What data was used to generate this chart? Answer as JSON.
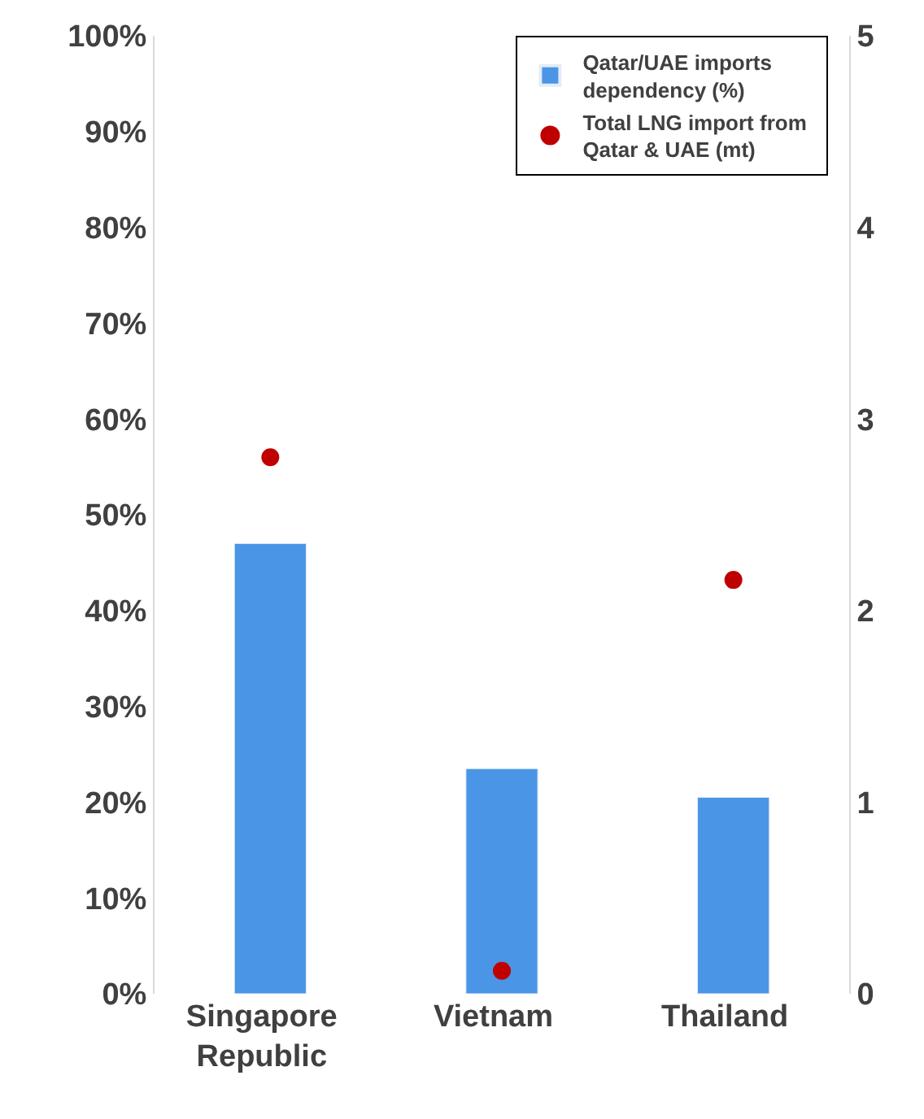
{
  "chart_data": {
    "type": "bar",
    "categories": [
      "Singapore Republic",
      "Vietnam",
      "Thailand"
    ],
    "series": [
      {
        "name": "Qatar/UAE imports dependency (%)",
        "color": "#4a95e6",
        "values": [
          47,
          23.5,
          20.5
        ]
      },
      {
        "name": "Total LNG import from Qatar & UAE (mt)",
        "type": "scatter",
        "axis": "y2",
        "color": "#c00000",
        "values": [
          2.8,
          0.12,
          2.16
        ]
      }
    ],
    "ylim": [
      0,
      100
    ],
    "yticks": [
      {
        "value": 0,
        "label": "0%"
      },
      {
        "value": 10,
        "label": "10%"
      },
      {
        "value": 20,
        "label": "20%"
      },
      {
        "value": 30,
        "label": "30%"
      },
      {
        "value": 40,
        "label": "40%"
      },
      {
        "value": 50,
        "label": "50%"
      },
      {
        "value": 60,
        "label": "60%"
      },
      {
        "value": 70,
        "label": "70%"
      },
      {
        "value": 80,
        "label": "80%"
      },
      {
        "value": 90,
        "label": "90%"
      },
      {
        "value": 100,
        "label": "100%"
      }
    ],
    "y2lim": [
      0,
      5
    ],
    "y2ticks": [
      0,
      1,
      2,
      3,
      4,
      5
    ],
    "legend": "top right",
    "marker": "circle"
  }
}
